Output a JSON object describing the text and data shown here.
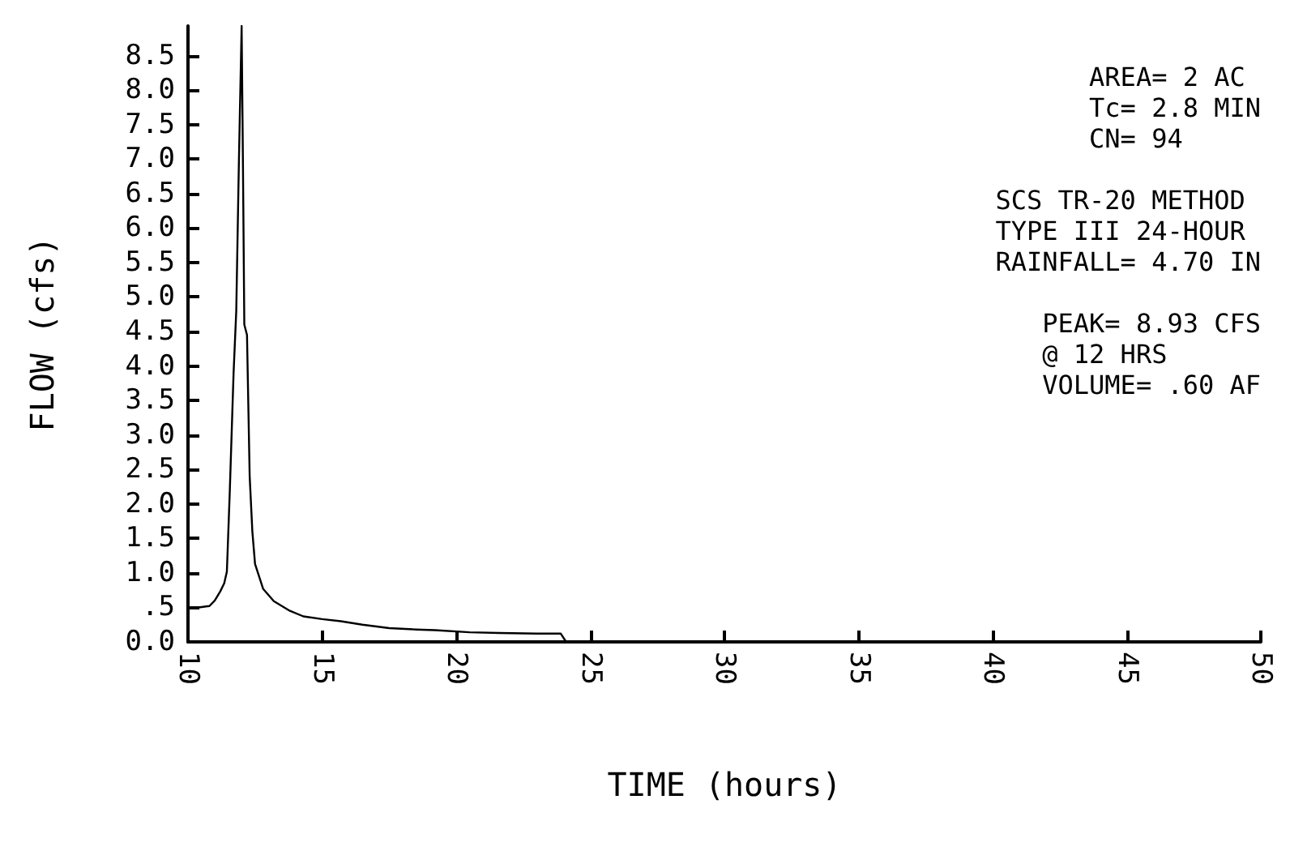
{
  "chart_data": {
    "type": "line",
    "xlabel": "TIME (hours)",
    "ylabel": "FLOW (cfs)",
    "x": [
      10,
      10.4,
      10.8,
      11.0,
      11.2,
      11.35,
      11.45,
      11.56,
      11.7,
      11.8,
      11.9,
      12.0,
      12.05,
      12.1,
      12.2,
      12.3,
      12.4,
      12.5,
      12.8,
      13.2,
      13.8,
      14.3,
      15,
      15.7,
      16.5,
      17.5,
      18.5,
      19.2,
      20.5,
      21.6,
      23,
      23.9,
      24.1,
      30,
      40,
      50
    ],
    "series": [
      {
        "color": "#000000",
        "values": [
          0.48,
          0.5,
          0.52,
          0.6,
          0.73,
          0.85,
          1.02,
          2.2,
          3.9,
          4.8,
          7.0,
          8.93,
          6.9,
          4.6,
          4.45,
          2.4,
          1.6,
          1.13,
          0.77,
          0.59,
          0.45,
          0.37,
          0.33,
          0.3,
          0.25,
          0.2,
          0.18,
          0.17,
          0.14,
          0.13,
          0.12,
          0.12,
          0,
          0,
          0,
          0
        ]
      }
    ],
    "xlim": [
      10,
      50
    ],
    "xticks": [
      10,
      15,
      20,
      25,
      30,
      35,
      40,
      45,
      50
    ],
    "ylim": [
      0,
      8.93
    ],
    "yticks": [
      {
        "value": 0,
        "label": "0.0"
      },
      {
        "value": 0.5,
        "label": ".5"
      },
      {
        "value": 1,
        "label": "1.0"
      },
      {
        "value": 1.5,
        "label": "1.5"
      },
      {
        "value": 2,
        "label": "2.0"
      },
      {
        "value": 2.5,
        "label": "2.5"
      },
      {
        "value": 3,
        "label": "3.0"
      },
      {
        "value": 3.5,
        "label": "3.5"
      },
      {
        "value": 4,
        "label": "4.0"
      },
      {
        "value": 4.5,
        "label": "4.5"
      },
      {
        "value": 5,
        "label": "5.0"
      },
      {
        "value": 5.5,
        "label": "5.5"
      },
      {
        "value": 6,
        "label": "6.0"
      },
      {
        "value": 6.5,
        "label": "6.5"
      },
      {
        "value": 7,
        "label": "7.0"
      },
      {
        "value": 7.5,
        "label": "7.5"
      },
      {
        "value": 8,
        "label": "8.0"
      },
      {
        "value": 8.5,
        "label": "8.5"
      }
    ],
    "grid": false,
    "marker": "none",
    "line_style": "solid",
    "annotations": [
      "AREA= 2 AC\nTc= 2.8 MIN\nCN= 94",
      "SCS TR-20 METHOD\nTYPE III 24-HOUR\nRAINFALL= 4.70 IN",
      "PEAK= 8.93 CFS\n@ 12 HRS\nVOLUME= .60 AF"
    ]
  }
}
